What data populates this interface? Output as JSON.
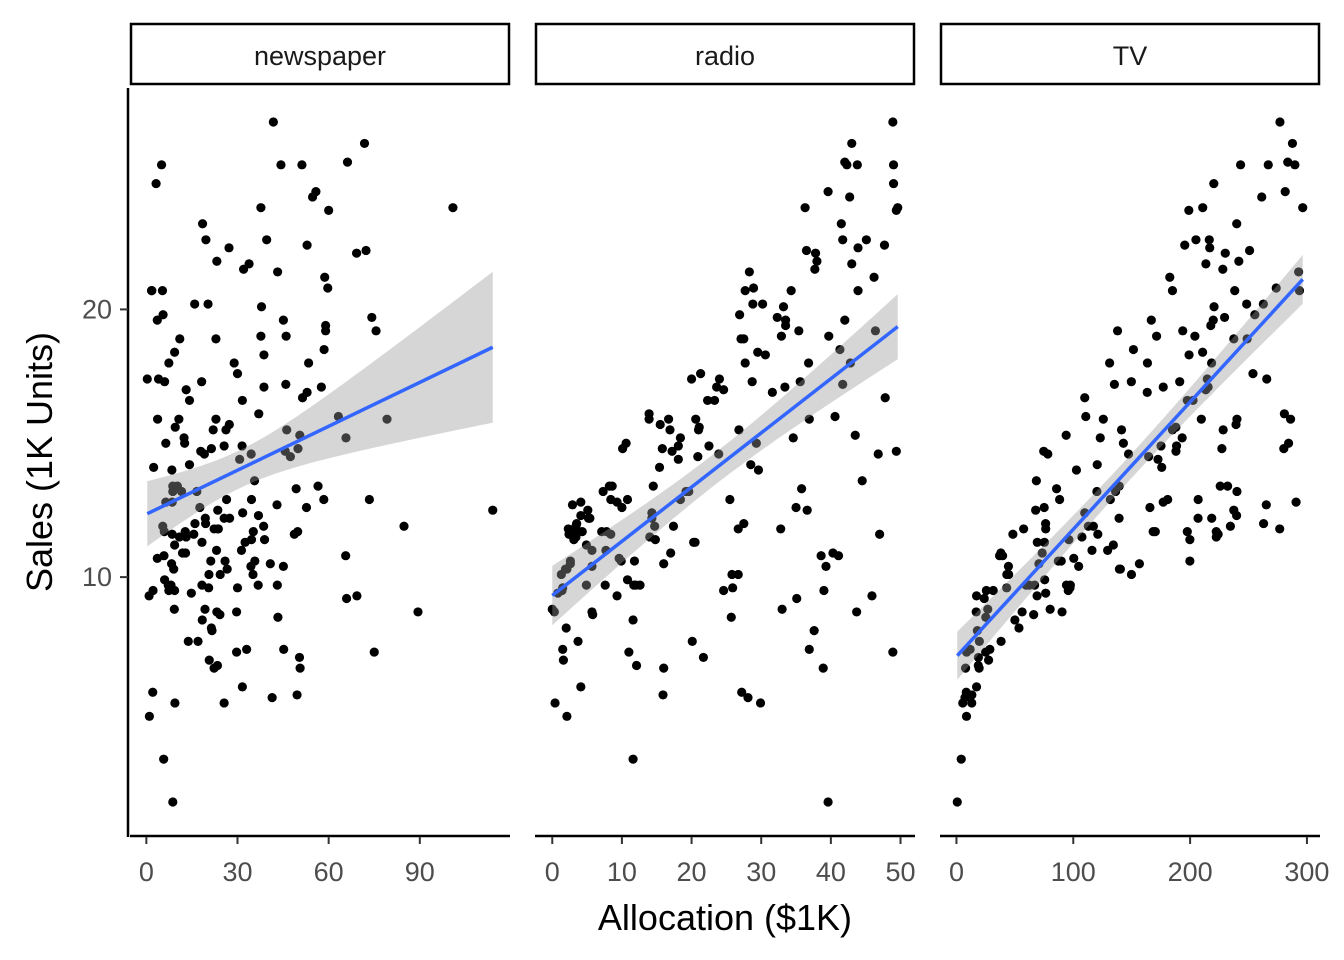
{
  "chart_data": {
    "type": "scatter",
    "title": "",
    "xlabel": "Allocation ($1K)",
    "ylabel": "Sales (1K Units)",
    "smooth": {
      "method": "lm",
      "color": "#3366FF",
      "band_color": "#999999",
      "confidence": 0.95
    },
    "point_color": "#000000",
    "y_ticks": [
      10,
      20
    ],
    "facets": [
      {
        "name": "newspaper",
        "column": 2,
        "x_ticks": [
          0,
          30,
          60,
          90
        ]
      },
      {
        "name": "radio",
        "column": 1,
        "x_ticks": [
          0,
          10,
          20,
          30,
          40,
          50
        ]
      },
      {
        "name": "TV",
        "column": 0,
        "x_ticks": [
          0,
          100,
          200,
          300
        ]
      }
    ],
    "columns": [
      "TV",
      "radio",
      "newspaper",
      "sales"
    ],
    "rows": [
      [
        230.1,
        37.8,
        69.2,
        22.1
      ],
      [
        44.5,
        39.3,
        45.1,
        10.4
      ],
      [
        17.2,
        45.9,
        69.3,
        9.3
      ],
      [
        151.5,
        41.3,
        58.5,
        18.5
      ],
      [
        180.8,
        10.8,
        58.4,
        12.9
      ],
      [
        8.7,
        48.9,
        75,
        7.2
      ],
      [
        57.5,
        32.8,
        23.5,
        11.8
      ],
      [
        120.2,
        19.6,
        11.6,
        13.2
      ],
      [
        8.6,
        2.1,
        1,
        4.8
      ],
      [
        199.8,
        2.6,
        21.2,
        10.6
      ],
      [
        66.1,
        5.8,
        24.2,
        8.6
      ],
      [
        214.7,
        24,
        4,
        17.4
      ],
      [
        23.8,
        35.1,
        65.9,
        9.2
      ],
      [
        97.5,
        7.6,
        7.2,
        9.7
      ],
      [
        204.1,
        32.9,
        46,
        19
      ],
      [
        195.4,
        47.7,
        52.9,
        22.4
      ],
      [
        67.8,
        36.6,
        114,
        12.5
      ],
      [
        281.4,
        39.6,
        55.8,
        24.4
      ],
      [
        69.2,
        20.5,
        18.3,
        11.3
      ],
      [
        147.3,
        23.9,
        19.1,
        14.6
      ],
      [
        218.4,
        27.7,
        53.4,
        18
      ],
      [
        237.4,
        5.1,
        23.5,
        12.5
      ],
      [
        13.2,
        15.9,
        49.6,
        5.6
      ],
      [
        228.3,
        16.9,
        26.2,
        15.5
      ],
      [
        62.3,
        12.6,
        18.3,
        9.7
      ],
      [
        262.9,
        3.5,
        19.5,
        12
      ],
      [
        142.9,
        29.3,
        12.6,
        15
      ],
      [
        240.1,
        16.7,
        22.9,
        15.9
      ],
      [
        248.8,
        27.1,
        22.9,
        18.9
      ],
      [
        70.6,
        16,
        40.8,
        10.5
      ],
      [
        292.9,
        28.3,
        43.2,
        21.4
      ],
      [
        112.9,
        17.4,
        38.6,
        11.9
      ],
      [
        97.2,
        1.5,
        30,
        9.6
      ],
      [
        265.6,
        20,
        0.3,
        17.4
      ],
      [
        95.7,
        1.4,
        7.4,
        9.5
      ],
      [
        290.7,
        4.1,
        8.5,
        12.8
      ],
      [
        266.9,
        43.8,
        5,
        25.4
      ],
      [
        74.7,
        49.4,
        45.7,
        14.7
      ],
      [
        43.1,
        26.7,
        35.1,
        10.1
      ],
      [
        228,
        37.7,
        32,
        21.5
      ],
      [
        202.5,
        22.3,
        31.6,
        16.6
      ],
      [
        177,
        33.4,
        38.7,
        17.1
      ],
      [
        293.6,
        27.7,
        1.8,
        20.7
      ],
      [
        206.9,
        8.4,
        26.4,
        12.9
      ],
      [
        25.1,
        25.7,
        43.3,
        8.5
      ],
      [
        175.1,
        22.5,
        31.5,
        14.9
      ],
      [
        89.7,
        9.9,
        35.7,
        10.6
      ],
      [
        239.9,
        41.5,
        18.5,
        23.2
      ],
      [
        227.2,
        15.8,
        49.9,
        14.8
      ],
      [
        66.9,
        11.7,
        36.8,
        9.7
      ],
      [
        199.8,
        3.1,
        34.6,
        11.4
      ],
      [
        100.4,
        9.6,
        3.6,
        10.7
      ],
      [
        216.4,
        41.7,
        39.6,
        22.6
      ],
      [
        182.6,
        46.2,
        58.7,
        21.2
      ],
      [
        262.7,
        28.8,
        15.9,
        20.2
      ],
      [
        198.9,
        49.4,
        60,
        23.7
      ],
      [
        7.3,
        28.1,
        41.4,
        5.5
      ],
      [
        136.2,
        19.2,
        16.6,
        13.2
      ],
      [
        210.8,
        49.6,
        37.7,
        23.8
      ],
      [
        210.7,
        29.5,
        9.3,
        18.4
      ],
      [
        53.5,
        2,
        21.4,
        8.1
      ],
      [
        261.3,
        42.7,
        54.7,
        24.2
      ],
      [
        239.3,
        15.5,
        27.3,
        15.7
      ],
      [
        102.7,
        29.6,
        8.4,
        14
      ],
      [
        131.1,
        42.8,
        28.9,
        18
      ],
      [
        69,
        9.3,
        0.9,
        9.3
      ],
      [
        31.5,
        24.6,
        2.2,
        9.5
      ],
      [
        139.3,
        14.5,
        10.2,
        13.4
      ],
      [
        237.4,
        27.5,
        11,
        18.9
      ],
      [
        216.8,
        43.9,
        27.2,
        22.3
      ],
      [
        199.1,
        30.6,
        38.7,
        18.3
      ],
      [
        109.8,
        14.3,
        31.7,
        12.4
      ],
      [
        26.8,
        33,
        19.3,
        8.8
      ],
      [
        129.4,
        5.7,
        31.3,
        11
      ],
      [
        213.4,
        24.6,
        13.1,
        17
      ],
      [
        16.9,
        43.7,
        89.4,
        8.7
      ],
      [
        27.5,
        1.6,
        20.7,
        6.9
      ],
      [
        120.5,
        28.5,
        14.2,
        14.2
      ],
      [
        5.4,
        29.9,
        9.4,
        5.3
      ],
      [
        116,
        7.7,
        23.1,
        11
      ],
      [
        76.4,
        26.7,
        22.3,
        11.8
      ],
      [
        239.8,
        4.1,
        36.9,
        12.3
      ],
      [
        75.3,
        20.3,
        32.5,
        11.3
      ],
      [
        68.4,
        44.5,
        35.6,
        13.6
      ],
      [
        213.5,
        43,
        33.8,
        21.7
      ],
      [
        193.2,
        18.4,
        65.7,
        15.2
      ],
      [
        76.3,
        27.5,
        16,
        12
      ],
      [
        110.7,
        40.6,
        63.2,
        16
      ],
      [
        88.3,
        25.5,
        73.4,
        12.9
      ],
      [
        109.8,
        47.8,
        51.4,
        16.7
      ],
      [
        134.3,
        4.9,
        9.3,
        11.2
      ],
      [
        28.6,
        1.5,
        33,
        7.3
      ],
      [
        217.7,
        33.5,
        59,
        19.4
      ],
      [
        250.9,
        36.5,
        72.3,
        22.2
      ],
      [
        107.4,
        14,
        10.9,
        11.5
      ],
      [
        163.3,
        31.6,
        52.9,
        16.9
      ],
      [
        197.6,
        3.5,
        5.9,
        11.7
      ],
      [
        184.9,
        21,
        22,
        15.5
      ],
      [
        289.7,
        42.3,
        51.2,
        25.4
      ],
      [
        135.2,
        41.7,
        45.9,
        17.2
      ],
      [
        222.4,
        4.3,
        49.8,
        11.7
      ],
      [
        296.4,
        36.3,
        100.9,
        23.8
      ],
      [
        280.2,
        10.1,
        21.4,
        14.8
      ],
      [
        187.9,
        17.2,
        17.9,
        14.7
      ],
      [
        238.2,
        34.3,
        5.3,
        20.7
      ],
      [
        137.9,
        46.4,
        59,
        19.2
      ],
      [
        25,
        11,
        29.7,
        7.2
      ],
      [
        90.4,
        0.3,
        23.2,
        8.7
      ],
      [
        13.1,
        0.4,
        25.6,
        5.3
      ],
      [
        255.4,
        26.9,
        5.5,
        19.8
      ],
      [
        225.8,
        8.2,
        56.5,
        13.4
      ],
      [
        241.7,
        38,
        23.2,
        21.8
      ],
      [
        175.7,
        15.4,
        2.4,
        14.1
      ],
      [
        209.6,
        20.6,
        10.7,
        15.9
      ],
      [
        78.2,
        46.8,
        34.5,
        14.6
      ],
      [
        75.1,
        35,
        52.7,
        12.6
      ],
      [
        139.2,
        14.3,
        25.6,
        12.2
      ],
      [
        76.4,
        0.8,
        14.8,
        9.4
      ],
      [
        125.7,
        36.9,
        79.2,
        15.9
      ],
      [
        19.4,
        16,
        22.3,
        6.6
      ],
      [
        141.3,
        26.8,
        46.2,
        15.5
      ],
      [
        18.8,
        21.7,
        50.4,
        7
      ],
      [
        224,
        2.4,
        15.6,
        11.6
      ],
      [
        123.1,
        34.6,
        12.4,
        15.2
      ],
      [
        229.5,
        32.3,
        74.2,
        19.7
      ],
      [
        87.2,
        11.8,
        25.9,
        10.6
      ],
      [
        7.8,
        38.9,
        50.6,
        6.6
      ],
      [
        80.2,
        0,
        9.2,
        8.8
      ],
      [
        220.3,
        49,
        3.2,
        24.7
      ],
      [
        59.6,
        12,
        43.1,
        9.7
      ],
      [
        0.7,
        39.6,
        8.7,
        1.6
      ],
      [
        265.2,
        2.9,
        43,
        12.7
      ],
      [
        8.4,
        27.2,
        2.1,
        5.7
      ],
      [
        219.8,
        33.5,
        45.1,
        19.6
      ],
      [
        36.9,
        38.6,
        65.6,
        10.8
      ],
      [
        48.3,
        47,
        8.5,
        11.6
      ],
      [
        25.6,
        39,
        9.3,
        9.5
      ],
      [
        273.7,
        28.9,
        59.7,
        20.8
      ],
      [
        43,
        25.9,
        20.5,
        9.6
      ],
      [
        184.9,
        43.9,
        1.7,
        20.7
      ],
      [
        73.4,
        17,
        12.9,
        10.9
      ],
      [
        193.7,
        35.4,
        75.6,
        19.2
      ],
      [
        220.5,
        33.2,
        37.9,
        20.1
      ],
      [
        104.6,
        5.7,
        34.4,
        10.4
      ],
      [
        96.2,
        14.8,
        38.9,
        11.4
      ],
      [
        140.3,
        1.9,
        9,
        10.3
      ],
      [
        240.1,
        7.3,
        8.7,
        13.2
      ],
      [
        243.2,
        49,
        44.3,
        25.4
      ],
      [
        38,
        40.3,
        11.9,
        10.9
      ],
      [
        44.7,
        25.8,
        20.6,
        10.1
      ],
      [
        280.7,
        13.9,
        37,
        16.1
      ],
      [
        121,
        8.4,
        48.7,
        11.6
      ],
      [
        197.6,
        23.3,
        14.2,
        16.6
      ],
      [
        171.3,
        39.7,
        37.7,
        19
      ],
      [
        187.8,
        21.1,
        9.5,
        15.6
      ],
      [
        4.1,
        11.6,
        5.7,
        3.2
      ],
      [
        93.9,
        43.5,
        50.5,
        15.3
      ],
      [
        149.8,
        1.3,
        24.3,
        10.1
      ],
      [
        11.7,
        36.9,
        45.2,
        7.3
      ],
      [
        131.7,
        18.4,
        34.6,
        12.9
      ],
      [
        172.5,
        18.1,
        30.7,
        14.4
      ],
      [
        85.7,
        35.8,
        49.3,
        13.3
      ],
      [
        188.4,
        18.1,
        25.6,
        14.9
      ],
      [
        163.5,
        36.8,
        7.4,
        18
      ],
      [
        117.2,
        14.7,
        5.4,
        11.9
      ],
      [
        234.5,
        3.4,
        84.8,
        11.9
      ],
      [
        17.9,
        37.6,
        21.6,
        8
      ],
      [
        206.8,
        5.2,
        19.4,
        12.2
      ],
      [
        215.4,
        23.6,
        57.6,
        17.1
      ],
      [
        284.3,
        10.6,
        6.4,
        15
      ],
      [
        50,
        11.6,
        18.4,
        8.4
      ],
      [
        164.5,
        20.9,
        47.4,
        14.5
      ],
      [
        19.6,
        20.1,
        17,
        7.6
      ],
      [
        168.4,
        7.1,
        12.8,
        11.7
      ],
      [
        222.4,
        3.4,
        13.1,
        11.5
      ],
      [
        276.9,
        48.9,
        41.8,
        27
      ],
      [
        248.4,
        30.2,
        20.3,
        20.2
      ],
      [
        170.2,
        7.8,
        35.2,
        11.7
      ],
      [
        276.7,
        2.3,
        23.7,
        11.8
      ],
      [
        165.6,
        10,
        17.6,
        12.6
      ],
      [
        156.6,
        2.6,
        8.3,
        10.5
      ],
      [
        218.5,
        5.4,
        27.4,
        12.2
      ],
      [
        56.2,
        5.7,
        29.7,
        8.7
      ],
      [
        287.6,
        43,
        71.8,
        26.2
      ],
      [
        253.8,
        21.3,
        30,
        17.6
      ],
      [
        205,
        45.1,
        19.6,
        22.6
      ],
      [
        139.5,
        2.1,
        26.6,
        10.3
      ],
      [
        191.1,
        28.7,
        18.2,
        17.3
      ],
      [
        286,
        13.9,
        3.7,
        15.9
      ],
      [
        18.7,
        12.1,
        23.4,
        6.7
      ],
      [
        39.5,
        41.1,
        5.8,
        10.8
      ],
      [
        75.5,
        10.8,
        6,
        9.9
      ],
      [
        17.2,
        4.1,
        31.6,
        5.9
      ],
      [
        166.8,
        42,
        3.6,
        19.6
      ],
      [
        149.7,
        35.6,
        6,
        17.3
      ],
      [
        38.2,
        3.7,
        13.8,
        7.6
      ],
      [
        94.2,
        4.9,
        8.1,
        9.7
      ],
      [
        177,
        9.3,
        6.4,
        12.8
      ],
      [
        283.6,
        42,
        66.2,
        25.5
      ],
      [
        232.1,
        8.6,
        8.7,
        13.4
      ]
    ]
  }
}
